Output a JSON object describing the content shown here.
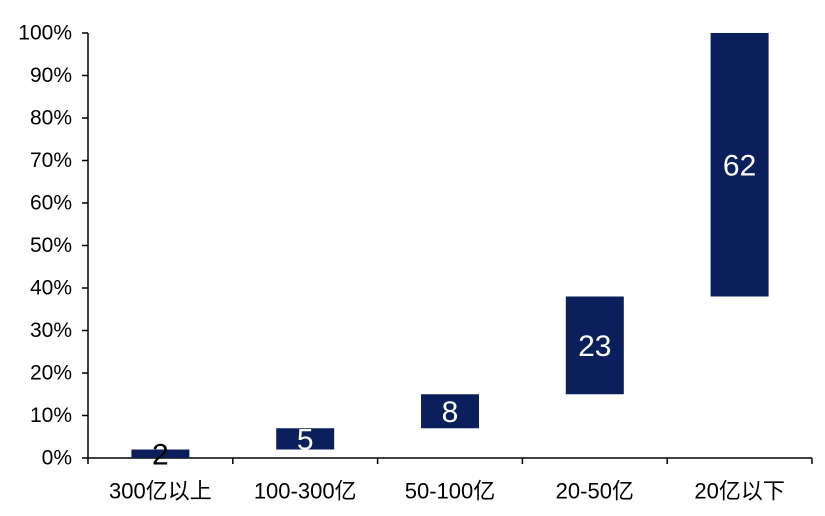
{
  "chart_data": {
    "type": "bar",
    "subtype": "waterfall",
    "categories": [
      "300亿以上",
      "100-300亿",
      "50-100亿",
      "20-50亿",
      "20亿以下"
    ],
    "values": [
      2,
      5,
      8,
      23,
      62
    ],
    "starts": [
      0,
      2,
      7,
      15,
      38
    ],
    "ends": [
      2,
      7,
      15,
      38,
      100
    ],
    "data_labels": [
      "2",
      "5",
      "8",
      "23",
      "62"
    ],
    "y_ticks": [
      "0%",
      "10%",
      "20%",
      "30%",
      "40%",
      "50%",
      "60%",
      "70%",
      "80%",
      "90%",
      "100%"
    ],
    "ylim": [
      0,
      100
    ],
    "title": "",
    "xlabel": "",
    "ylabel": "",
    "grid": false,
    "legend": "none",
    "bar_color": "#0a1f5c",
    "label_colors": [
      "#000000",
      "#ffffff",
      "#ffffff",
      "#ffffff",
      "#ffffff"
    ]
  }
}
